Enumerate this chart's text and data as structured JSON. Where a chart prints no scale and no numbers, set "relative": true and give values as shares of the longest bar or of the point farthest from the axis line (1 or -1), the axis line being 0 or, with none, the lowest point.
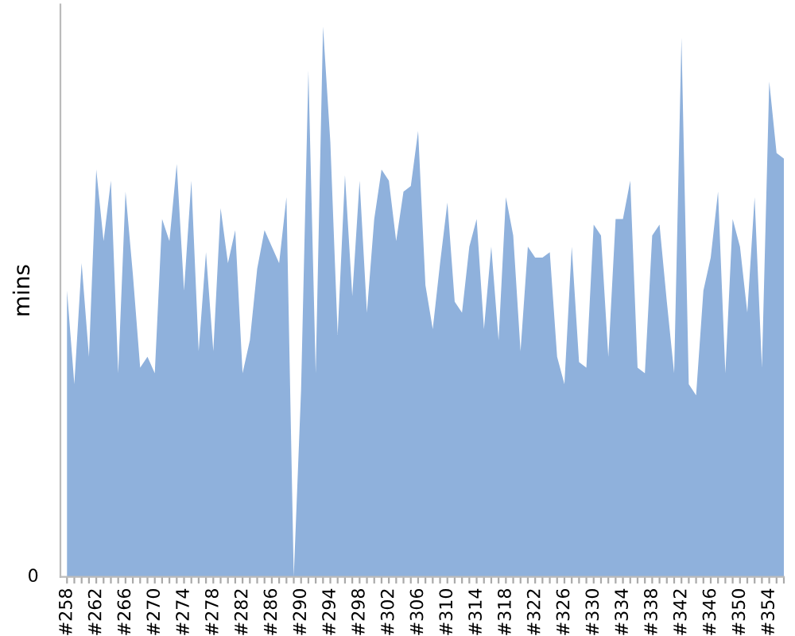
{
  "chart_data": {
    "type": "area",
    "relative": true,
    "ylabel": "mins",
    "annotations": [
      "0"
    ],
    "color": "#8fb1dc",
    "grid": false,
    "legend": false,
    "categories": [
      "#258",
      null,
      null,
      null,
      "#262",
      null,
      null,
      null,
      "#266",
      null,
      null,
      null,
      "#270",
      null,
      null,
      null,
      "#274",
      null,
      null,
      null,
      "#278",
      null,
      null,
      null,
      "#282",
      null,
      null,
      null,
      "#286",
      null,
      null,
      null,
      "#290",
      null,
      null,
      null,
      "#294",
      null,
      null,
      null,
      "#298",
      null,
      null,
      null,
      "#302",
      null,
      null,
      null,
      "#306",
      null,
      null,
      null,
      "#310",
      null,
      null,
      null,
      "#314",
      null,
      null,
      null,
      "#318",
      null,
      null,
      null,
      "#322",
      null,
      null,
      null,
      "#326",
      null,
      null,
      null,
      "#330",
      null,
      null,
      null,
      "#334",
      null,
      null,
      null,
      "#338",
      null,
      null,
      null,
      "#342",
      null,
      null,
      null,
      "#346",
      null,
      null,
      null,
      "#350",
      null,
      null,
      null,
      "#354",
      null,
      null
    ],
    "values": [
      0.52,
      0.35,
      0.57,
      0.4,
      0.74,
      0.61,
      0.72,
      0.37,
      0.7,
      0.55,
      0.38,
      0.4,
      0.37,
      0.65,
      0.61,
      0.75,
      0.52,
      0.72,
      0.41,
      0.59,
      0.41,
      0.67,
      0.57,
      0.63,
      0.37,
      0.43,
      0.56,
      0.63,
      0.6,
      0.57,
      0.69,
      0,
      0.34,
      0.92,
      0.37,
      1,
      0.79,
      0.44,
      0.73,
      0.51,
      0.72,
      0.48,
      0.65,
      0.74,
      0.72,
      0.61,
      0.7,
      0.71,
      0.81,
      0.53,
      0.45,
      0.57,
      0.68,
      0.5,
      0.48,
      0.6,
      0.65,
      0.45,
      0.6,
      0.43,
      0.69,
      0.62,
      0.41,
      0.6,
      0.58,
      0.58,
      0.59,
      0.4,
      0.35,
      0.6,
      0.39,
      0.38,
      0.64,
      0.62,
      0.4,
      0.65,
      0.65,
      0.72,
      0.38,
      0.37,
      0.62,
      0.64,
      0.5,
      0.37,
      0.98,
      0.35,
      0.33,
      0.52,
      0.58,
      0.7,
      0.37,
      0.65,
      0.6,
      0.48,
      0.69,
      0.38,
      0.9,
      0.77,
      0.76
    ]
  }
}
